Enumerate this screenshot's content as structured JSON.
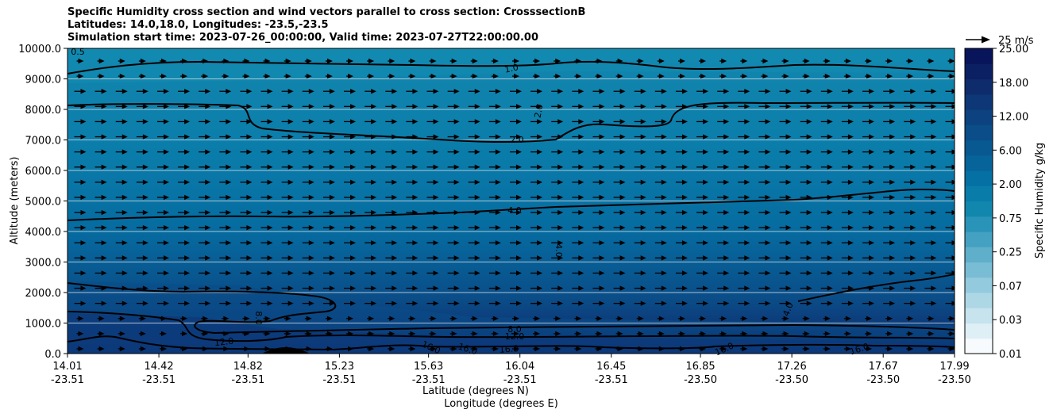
{
  "title": {
    "line1": "Specific Humidity cross section and wind vectors parallel to cross section: CrosssectionB",
    "line2": "Latitudes: 14.0,18.0, Longitudes: -23.5,-23.5",
    "line3": "Simulation start time: 2023-07-26_00:00:00, Valid time: 2023-07-27T22:00:00.00"
  },
  "chart_data": {
    "type": "heatmap",
    "xlabel_lat": "Latitude (degrees N)",
    "xlabel_lon": "Longitude (degrees E)",
    "ylabel": "Altitude (meters)",
    "ylim": [
      0,
      10000
    ],
    "yticks": [
      "0.0",
      "1000.0",
      "2000.0",
      "3000.0",
      "4000.0",
      "5000.0",
      "6000.0",
      "7000.0",
      "8000.0",
      "9000.0",
      "10000.0"
    ],
    "xtick_lat": [
      "14.01",
      "14.42",
      "14.82",
      "15.23",
      "15.63",
      "16.04",
      "16.45",
      "16.85",
      "17.26",
      "17.67",
      "17.99"
    ],
    "xtick_lon": [
      "-23.51",
      "-23.51",
      "-23.51",
      "-23.51",
      "-23.51",
      "-23.51",
      "-23.51",
      "-23.50",
      "-23.50",
      "-23.50",
      "-23.50"
    ],
    "grid": "horizontal",
    "colorbar": {
      "label": "Specific Humidity g/kg",
      "ticks": [
        "0.01",
        "0.03",
        "0.07",
        "0.25",
        "0.75",
        "2.00",
        "6.00",
        "12.00",
        "18.00",
        "25.00"
      ],
      "colors": [
        "#f7fbfd",
        "#deeff5",
        "#c6e3ee",
        "#aed7e6",
        "#93cadd",
        "#79bdd4",
        "#5fafcb",
        "#44a1c2",
        "#2a93b8",
        "#1287ae",
        "#0a7caa",
        "#0570a3",
        "#06649a",
        "#085891",
        "#0a4d88",
        "#0c427f",
        "#0d3776",
        "#0e2c6c",
        "#0b2063",
        "#08155a"
      ]
    },
    "quiver_key": "25 m/s",
    "contour_labels": [
      "0.5",
      "1.0",
      "2.0",
      "2.0",
      "4.0",
      "4.0",
      "4.0",
      "8.0",
      "8.0",
      "12.0",
      "12.0",
      "16.0",
      "16.0",
      "16.0",
      "16.0",
      "16.0"
    ]
  }
}
